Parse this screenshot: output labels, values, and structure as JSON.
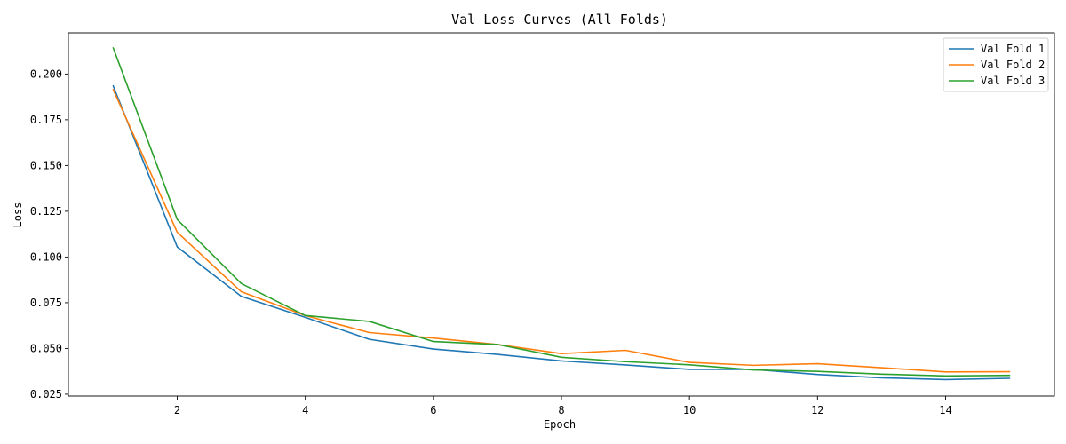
{
  "chart_data": {
    "type": "line",
    "title": "Val Loss Curves (All Folds)",
    "xlabel": "Epoch",
    "ylabel": "Loss",
    "xlim": [
      0.3,
      15.7
    ],
    "ylim": [
      0.024,
      0.2225
    ],
    "xticks": [
      2,
      4,
      6,
      8,
      10,
      12,
      14
    ],
    "yticks": [
      0.025,
      0.05,
      0.075,
      0.1,
      0.125,
      0.15,
      0.175,
      0.2
    ],
    "ytick_labels": [
      "0.025",
      "0.050",
      "0.075",
      "0.100",
      "0.125",
      "0.150",
      "0.175",
      "0.200"
    ],
    "grid": false,
    "legend": "top-right",
    "x": [
      1,
      2,
      3,
      4,
      5,
      6,
      7,
      8,
      9,
      10,
      11,
      12,
      13,
      14,
      15
    ],
    "series": [
      {
        "name": "Val Fold 1",
        "color": "#1f77b4",
        "values": [
          0.1935,
          0.1055,
          0.0785,
          0.067,
          0.055,
          0.0497,
          0.0468,
          0.0432,
          0.041,
          0.0386,
          0.0386,
          0.0358,
          0.034,
          0.033,
          0.0337
        ]
      },
      {
        "name": "Val Fold 2",
        "color": "#ff7f0e",
        "values": [
          0.1915,
          0.1135,
          0.081,
          0.068,
          0.0587,
          0.0557,
          0.0522,
          0.0472,
          0.049,
          0.0424,
          0.0408,
          0.0417,
          0.0395,
          0.0372,
          0.0373
        ]
      },
      {
        "name": "Val Fold 3",
        "color": "#2ca02c",
        "values": [
          0.2143,
          0.1205,
          0.0855,
          0.068,
          0.0648,
          0.0538,
          0.0522,
          0.0452,
          0.0428,
          0.0411,
          0.0383,
          0.0375,
          0.036,
          0.035,
          0.0353
        ]
      }
    ]
  }
}
